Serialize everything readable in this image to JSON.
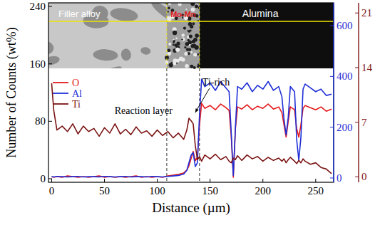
{
  "chart_data": {
    "type": "line",
    "x_label": "Distance (µm)",
    "y_label": "Number of Counts (wt%)",
    "annotations": [
      "Filler alloy",
      "Mo-Mn",
      "Alumina",
      "Reaction layer",
      "Ti-rich"
    ],
    "boundaries": [
      109,
      140
    ],
    "legend": "left",
    "xlim": [
      -3,
      267
    ],
    "xticks": [
      0,
      50,
      100,
      150,
      200,
      250
    ],
    "ylim": [
      -5,
      245
    ],
    "yticks": [
      0,
      80,
      160,
      240
    ],
    "y2lim": [
      -17,
      690
    ],
    "y2ticks": [
      0,
      200,
      400,
      600
    ],
    "y3lim": [
      -0.7,
      22.3
    ],
    "y3ticks": [
      0,
      7,
      14,
      21
    ],
    "x": [
      0,
      2,
      5,
      10,
      15,
      20,
      25,
      30,
      35,
      40,
      45,
      50,
      55,
      60,
      65,
      70,
      75,
      80,
      85,
      90,
      95,
      100,
      105,
      110,
      115,
      120,
      125,
      128,
      130,
      132,
      134,
      136,
      138,
      140,
      142,
      145,
      150,
      155,
      160,
      165,
      168,
      170,
      172,
      174,
      176,
      180,
      185,
      190,
      195,
      200,
      205,
      210,
      215,
      218,
      220,
      222,
      224,
      226,
      230,
      232,
      234,
      236,
      238,
      240,
      245,
      250,
      255,
      260,
      265
    ],
    "series": [
      {
        "name": "O",
        "color": "#e41a1c",
        "values": [
          3,
          2,
          3,
          2,
          4,
          3,
          2,
          3,
          2,
          3,
          4,
          2,
          3,
          2,
          3,
          2,
          3,
          4,
          2,
          3,
          2,
          3,
          2,
          4,
          5,
          6,
          8,
          12,
          18,
          28,
          38,
          25,
          30,
          75,
          105,
          98,
          102,
          96,
          104,
          99,
          95,
          60,
          2,
          70,
          100,
          97,
          103,
          96,
          101,
          98,
          104,
          97,
          100,
          92,
          75,
          58,
          80,
          100,
          96,
          70,
          58,
          75,
          98,
          102,
          99,
          96,
          100,
          94,
          97
        ]
      },
      {
        "name": "Al",
        "color": "#1f2fd6",
        "axis": "y2",
        "values": [
          5,
          4,
          6,
          5,
          4,
          5,
          6,
          4,
          5,
          5,
          4,
          6,
          5,
          4,
          5,
          6,
          4,
          5,
          5,
          4,
          6,
          5,
          4,
          6,
          8,
          10,
          15,
          30,
          60,
          90,
          100,
          45,
          60,
          250,
          390,
          360,
          375,
          345,
          380,
          355,
          340,
          180,
          10,
          200,
          360,
          350,
          375,
          340,
          365,
          350,
          380,
          345,
          360,
          320,
          230,
          170,
          240,
          360,
          340,
          150,
          70,
          160,
          350,
          370,
          355,
          340,
          350,
          325,
          330
        ]
      },
      {
        "name": "Ti",
        "color": "#7b1414",
        "axis": "y3",
        "values": [
          12,
          8.5,
          6,
          6.5,
          5.8,
          6.8,
          5.5,
          6.5,
          5.8,
          6.2,
          5.2,
          6.3,
          5.6,
          6.8,
          5.5,
          6.1,
          5.4,
          6.4,
          5.6,
          5.9,
          5.2,
          6.0,
          5.3,
          5.8,
          5.0,
          5.6,
          4.8,
          6.0,
          7.5,
          7.2,
          6.8,
          4.0,
          2.2,
          2.6,
          2.0,
          2.8,
          2.3,
          2.9,
          2.2,
          2.6,
          2.0,
          1.8,
          2.4,
          2.2,
          2.7,
          2.1,
          2.8,
          2.3,
          2.6,
          2.0,
          2.5,
          2.1,
          2.4,
          2.0,
          2.3,
          1.8,
          2.2,
          2.5,
          2.0,
          1.7,
          2.1,
          1.8,
          2.3,
          2.0,
          1.6,
          1.8,
          1.2,
          1.0,
          0.4
        ]
      }
    ]
  }
}
